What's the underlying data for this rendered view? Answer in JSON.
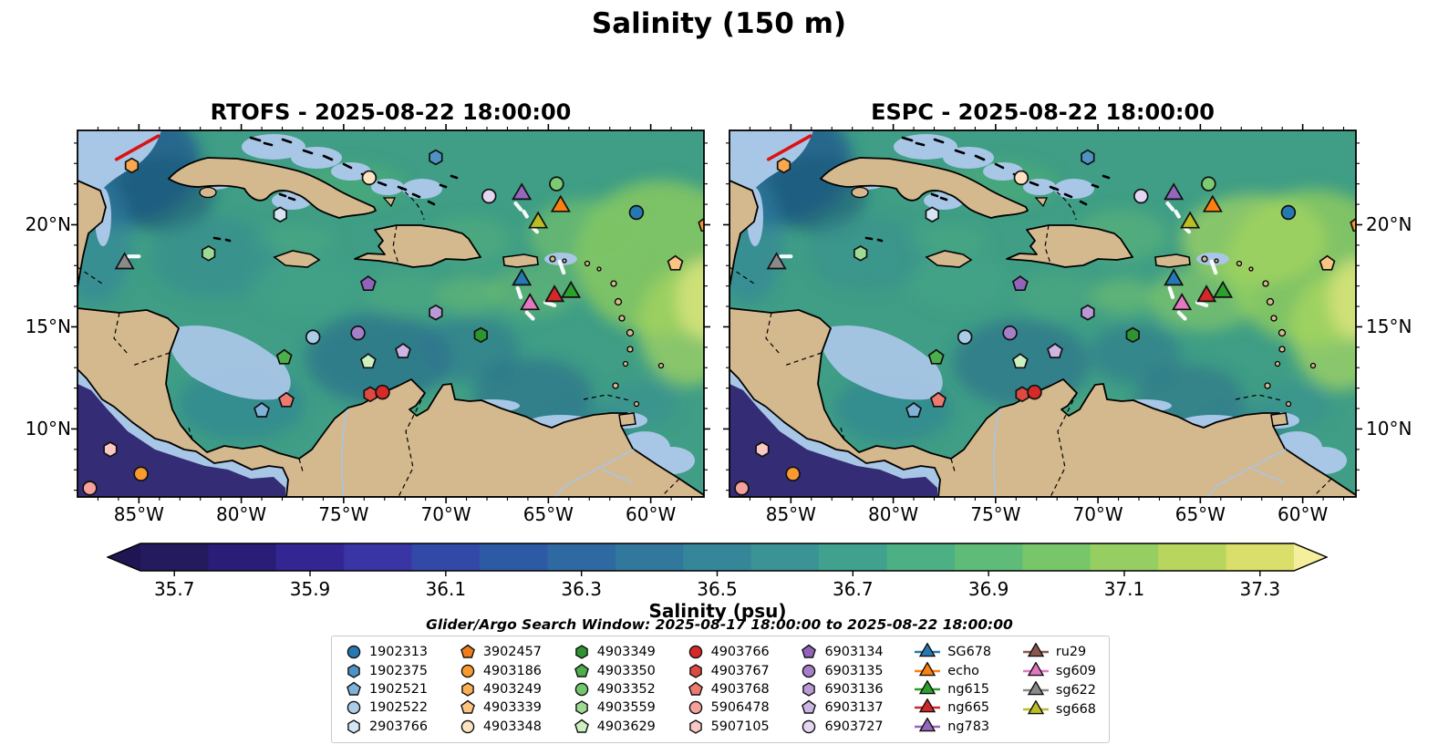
{
  "chart_data": {
    "type": "heatmap",
    "title": "Salinity (150 m)",
    "panels": [
      {
        "model": "RTOFS",
        "title": "RTOFS - 2025-08-22 18:00:00"
      },
      {
        "model": "ESPC",
        "title": "ESPC - 2025-08-22 18:00:00"
      }
    ],
    "axes": {
      "x_ticks": [
        {
          "label": "85°W",
          "lon_w": 85
        },
        {
          "label": "80°W",
          "lon_w": 80
        },
        {
          "label": "75°W",
          "lon_w": 75
        },
        {
          "label": "70°W",
          "lon_w": 70
        },
        {
          "label": "65°W",
          "lon_w": 65
        },
        {
          "label": "60°W",
          "lon_w": 60
        }
      ],
      "y_ticks": [
        {
          "label": "10°N",
          "lat_n": 10
        },
        {
          "label": "15°N",
          "lat_n": 15
        },
        {
          "label": "20°N",
          "lat_n": 20
        }
      ],
      "extent": {
        "lon_west_w": 88.0,
        "lon_east_w": 57.4,
        "lat_north_n": 24.62,
        "lat_south_n": 6.67
      }
    },
    "colorbar": {
      "label": "Salinity (psu)",
      "vmin": 35.65,
      "vmax": 37.35,
      "ticks": [
        35.7,
        35.9,
        36.1,
        36.3,
        36.5,
        36.7,
        36.9,
        37.1,
        37.3
      ],
      "extend": "both",
      "left_arrow_color": "#1f1553",
      "right_arrow_color": "#f4ee9d",
      "segment_colors": [
        "#241a5e",
        "#2a1d78",
        "#332693",
        "#3a35a4",
        "#3349a7",
        "#2e5aa5",
        "#2e69a1",
        "#31789c",
        "#358699",
        "#3a9495",
        "#40a28e",
        "#4cb084",
        "#5ebc78",
        "#78c66a",
        "#97ce61",
        "#b8d55e",
        "#dadf6c"
      ]
    },
    "legend": {
      "title": "Glider/Argo Search Window: 2025-08-17 18:00:00 to 2025-08-22 18:00:00",
      "columns": [
        {
          "items": [
            {
              "label": "1902313",
              "shape": "circle",
              "color": "#2678b2"
            },
            {
              "label": "1902375",
              "shape": "hexagon",
              "color": "#4e93c4"
            },
            {
              "label": "1902521",
              "shape": "pentagon",
              "color": "#7fb2d6"
            },
            {
              "label": "1902522",
              "shape": "circle",
              "color": "#abcde8"
            },
            {
              "label": "2903766",
              "shape": "hexagon",
              "color": "#d4e6f4"
            }
          ]
        },
        {
          "items": [
            {
              "label": "3902457",
              "shape": "pentagon",
              "color": "#ef7d1b"
            },
            {
              "label": "4903186",
              "shape": "circle",
              "color": "#f9992e"
            },
            {
              "label": "4903249",
              "shape": "hexagon",
              "color": "#fbae55"
            },
            {
              "label": "4903339",
              "shape": "pentagon",
              "color": "#fcc482"
            },
            {
              "label": "4903348",
              "shape": "circle",
              "color": "#fde3c1"
            }
          ]
        },
        {
          "items": [
            {
              "label": "4903349",
              "shape": "hexagon",
              "color": "#2e9331"
            },
            {
              "label": "4903350",
              "shape": "pentagon",
              "color": "#4daf4b"
            },
            {
              "label": "4903352",
              "shape": "circle",
              "color": "#72c66e"
            },
            {
              "label": "4903559",
              "shape": "hexagon",
              "color": "#9fda95"
            },
            {
              "label": "4903629",
              "shape": "pentagon",
              "color": "#cdf0c0"
            }
          ]
        },
        {
          "items": [
            {
              "label": "4903766",
              "shape": "circle",
              "color": "#d62a28"
            },
            {
              "label": "4903767",
              "shape": "hexagon",
              "color": "#dc4a41"
            },
            {
              "label": "4903768",
              "shape": "pentagon",
              "color": "#ec7a6e"
            },
            {
              "label": "5906478",
              "shape": "circle",
              "color": "#f5a29c"
            },
            {
              "label": "5907105",
              "shape": "hexagon",
              "color": "#fbc9c5"
            }
          ]
        },
        {
          "items": [
            {
              "label": "6903134",
              "shape": "pentagon",
              "color": "#9263bb"
            },
            {
              "label": "6903135",
              "shape": "circle",
              "color": "#a57fc9"
            },
            {
              "label": "6903136",
              "shape": "hexagon",
              "color": "#b99ad7"
            },
            {
              "label": "6903137",
              "shape": "pentagon",
              "color": "#ccb5e4"
            },
            {
              "label": "6903727",
              "shape": "circle",
              "color": "#e4d6f2"
            }
          ]
        },
        {
          "items": [
            {
              "label": "SG678",
              "shape": "triangle",
              "color": "#2678b2",
              "line": true
            },
            {
              "label": "echo",
              "shape": "triangle",
              "color": "#ff7f0e",
              "line": true
            },
            {
              "label": "ng615",
              "shape": "triangle",
              "color": "#2ca02c",
              "line": true
            },
            {
              "label": "ng665",
              "shape": "triangle",
              "color": "#d62728",
              "line": true
            },
            {
              "label": "ng783",
              "shape": "triangle",
              "color": "#9467bd",
              "line": true
            }
          ]
        },
        {
          "items": [
            {
              "label": "ru29",
              "shape": "triangle",
              "color": "#8c564b",
              "line": true
            },
            {
              "label": "sg609",
              "shape": "triangle",
              "color": "#e377c2",
              "line": true
            },
            {
              "label": "sg622",
              "shape": "triangle",
              "color": "#8a8a8a",
              "line": true
            },
            {
              "label": "sg668",
              "shape": "triangle",
              "color": "#bcbd22",
              "line": true
            }
          ]
        }
      ]
    },
    "markers": [
      {
        "shape": "hexagon",
        "color": "#f9a84b",
        "lon_w": 85.35,
        "lat_n": 22.9
      },
      {
        "shape": "hexagon",
        "color": "#4e93c4",
        "lon_w": 70.5,
        "lat_n": 23.3
      },
      {
        "shape": "circle",
        "color": "#fde3c1",
        "lon_w": 73.75,
        "lat_n": 22.3
      },
      {
        "shape": "hexagon",
        "color": "#d4e6f4",
        "lon_w": 78.1,
        "lat_n": 20.5
      },
      {
        "shape": "circle",
        "color": "#e4d6f2",
        "lon_w": 67.9,
        "lat_n": 21.4
      },
      {
        "shape": "triangle",
        "name": "ng783",
        "color": "#9467bd",
        "lon_w": 66.3,
        "lat_n": 21.5
      },
      {
        "shape": "circle",
        "color": "#7ccb72",
        "lon_w": 64.6,
        "lat_n": 22.0
      },
      {
        "shape": "triangle",
        "name": "echo",
        "color": "#ff7f0e",
        "lon_w": 64.4,
        "lat_n": 20.9
      },
      {
        "shape": "triangle",
        "name": "sg668",
        "color": "#bcbd22",
        "lon_w": 65.5,
        "lat_n": 20.1
      },
      {
        "shape": "circle",
        "color": "#2678b2",
        "lon_w": 60.7,
        "lat_n": 20.6
      },
      {
        "shape": "pentagon",
        "color": "#f9992e",
        "lon_w": 57.3,
        "lat_n": 20.0
      },
      {
        "shape": "pentagon",
        "color": "#fcc482",
        "lon_w": 58.8,
        "lat_n": 18.1
      },
      {
        "shape": "triangle",
        "name": "sg622",
        "color": "#8a8a8a",
        "lon_w": 85.7,
        "lat_n": 18.1
      },
      {
        "shape": "hexagon",
        "color": "#9fda95",
        "lon_w": 81.6,
        "lat_n": 18.6
      },
      {
        "shape": "pentagon",
        "color": "#9263bb",
        "lon_w": 73.8,
        "lat_n": 17.1
      },
      {
        "shape": "triangle",
        "name": "SG678",
        "color": "#2678b2",
        "lon_w": 66.3,
        "lat_n": 17.3
      },
      {
        "shape": "triangle",
        "name": "ng665",
        "color": "#d62728",
        "lon_w": 64.7,
        "lat_n": 16.5
      },
      {
        "shape": "triangle",
        "name": "ng615",
        "color": "#2ca02c",
        "lon_w": 63.9,
        "lat_n": 16.7
      },
      {
        "shape": "triangle",
        "name": "sg609",
        "color": "#e377c2",
        "lon_w": 65.9,
        "lat_n": 16.1
      },
      {
        "shape": "hexagon",
        "color": "#b99ad7",
        "lon_w": 70.5,
        "lat_n": 15.7
      },
      {
        "shape": "hexagon",
        "color": "#2e9331",
        "lon_w": 68.3,
        "lat_n": 14.6
      },
      {
        "shape": "circle",
        "color": "#abcde8",
        "lon_w": 76.5,
        "lat_n": 14.5
      },
      {
        "shape": "circle",
        "color": "#a57fc9",
        "lon_w": 74.3,
        "lat_n": 14.7
      },
      {
        "shape": "pentagon",
        "color": "#4daf4b",
        "lon_w": 77.9,
        "lat_n": 13.5
      },
      {
        "shape": "pentagon",
        "color": "#cdf0c0",
        "lon_w": 73.8,
        "lat_n": 13.3
      },
      {
        "shape": "pentagon",
        "color": "#ccb5e4",
        "lon_w": 72.1,
        "lat_n": 13.8
      },
      {
        "shape": "hexagon",
        "color": "#dc4a41",
        "lon_w": 73.7,
        "lat_n": 11.7
      },
      {
        "shape": "circle",
        "color": "#d62a28",
        "lon_w": 73.1,
        "lat_n": 11.8
      },
      {
        "shape": "pentagon",
        "color": "#ec7a6e",
        "lon_w": 77.8,
        "lat_n": 11.4
      },
      {
        "shape": "pentagon",
        "color": "#7fb2d6",
        "lon_w": 79.0,
        "lat_n": 10.9
      },
      {
        "shape": "hexagon",
        "color": "#fbc9c5",
        "lon_w": 86.4,
        "lat_n": 9.0
      },
      {
        "shape": "circle",
        "color": "#f9992e",
        "lon_w": 84.9,
        "lat_n": 7.8
      },
      {
        "shape": "circle",
        "color": "#f5a29c",
        "lon_w": 87.4,
        "lat_n": 7.1
      }
    ],
    "annotations": {
      "red_line": {
        "color": "#dd1111",
        "lon_w1": 86.1,
        "lat_n1": 23.2,
        "lon_w2": 84.05,
        "lat_n2": 24.35
      },
      "white_track_dashes": [
        [
          85.5,
          18.45,
          85.0,
          18.45
        ],
        [
          66.6,
          21.05,
          66.35,
          20.75
        ],
        [
          66.2,
          20.65,
          66.05,
          20.4
        ],
        [
          65.75,
          19.85,
          65.55,
          19.65
        ],
        [
          66.5,
          16.9,
          66.35,
          16.45
        ],
        [
          64.45,
          18.2,
          64.25,
          17.65
        ],
        [
          66.05,
          15.7,
          65.75,
          15.4
        ],
        [
          65.15,
          16.2,
          64.7,
          16.05
        ]
      ]
    }
  }
}
